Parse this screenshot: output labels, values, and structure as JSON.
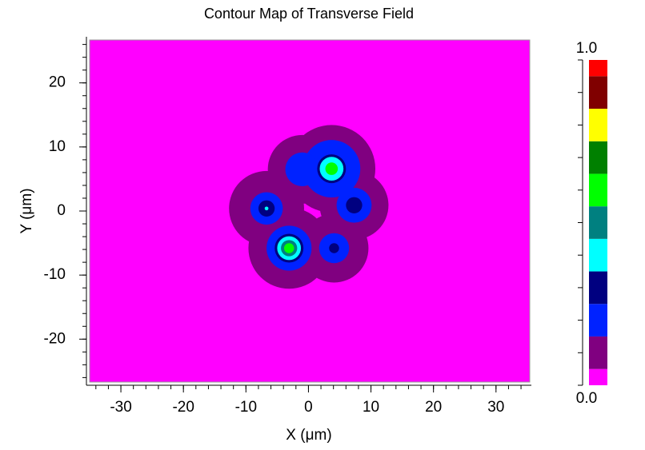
{
  "chart_data": {
    "type": "contour",
    "title": "Contour Map of Transverse Field",
    "xlabel": "X (μm)",
    "ylabel": "Y (μm)",
    "xlim": [
      -35,
      35.4
    ],
    "ylim": [
      -26.7,
      26.7
    ],
    "xticks": [
      -30,
      -20,
      -10,
      0,
      10,
      20,
      30
    ],
    "yticks": [
      -20,
      -10,
      0,
      10,
      20
    ],
    "minor_step": 2,
    "background_color": "#ff00ff",
    "colorbar": {
      "boundaries": [
        0,
        0.05,
        0.15,
        0.25,
        0.35,
        0.45,
        0.55,
        0.65,
        0.75,
        0.85,
        0.95,
        1
      ],
      "colors": [
        "#ff00ff",
        "#800080",
        "#0022ff",
        "#000080",
        "#00ffff",
        "#008080",
        "#00ff00",
        "#008000",
        "#ffff00",
        "#800000",
        "#ff0000"
      ],
      "ticks": [
        0,
        0.1,
        0.2,
        0.3,
        0.4,
        0.5,
        0.6,
        0.7,
        0.8,
        0.9,
        1
      ],
      "tick_labels": [
        {
          "value": 0,
          "label": "0.0"
        },
        {
          "value": 1,
          "label": "1.0"
        }
      ]
    },
    "contours": [
      {
        "level": 0.1,
        "circles": [
          {
            "x": 3.7,
            "y": 6.6,
            "r": 7.0
          },
          {
            "x": -1.0,
            "y": 6.5,
            "r": 5.5
          },
          {
            "x": 7.3,
            "y": 0.9,
            "r": 5.5
          },
          {
            "x": -6.7,
            "y": 0.4,
            "r": 6.0
          },
          {
            "x": -3.1,
            "y": -5.8,
            "r": 6.5
          },
          {
            "x": 4.1,
            "y": -5.8,
            "r": 5.5
          }
        ]
      },
      {
        "level": 0.2,
        "circles": [
          {
            "x": 3.7,
            "y": 6.6,
            "r": 4.6
          },
          {
            "x": -1.0,
            "y": 6.5,
            "r": 2.7
          },
          {
            "x": 7.3,
            "y": 0.9,
            "r": 2.8
          },
          {
            "x": -6.7,
            "y": 0.4,
            "r": 2.6
          },
          {
            "x": -3.1,
            "y": -5.8,
            "r": 3.6
          },
          {
            "x": 4.1,
            "y": -5.8,
            "r": 2.4
          }
        ]
      },
      {
        "level": 0.3,
        "circles": [
          {
            "x": 3.7,
            "y": 6.6,
            "r": 2.3
          },
          {
            "x": 7.3,
            "y": 0.9,
            "r": 1.3
          },
          {
            "x": -6.7,
            "y": 0.4,
            "r": 1.3
          },
          {
            "x": -3.1,
            "y": -5.8,
            "r": 2.3
          },
          {
            "x": 4.1,
            "y": -5.8,
            "r": 0.8
          }
        ]
      },
      {
        "level": 0.4,
        "circles": [
          {
            "x": 3.7,
            "y": 6.6,
            "r": 1.9
          },
          {
            "x": -6.7,
            "y": 0.4,
            "r": 0.3
          },
          {
            "x": -3.1,
            "y": -5.8,
            "r": 1.9
          }
        ]
      },
      {
        "level": 0.5,
        "circles": [
          {
            "x": -3.1,
            "y": -5.8,
            "r": 1.3
          }
        ]
      },
      {
        "level": 0.6,
        "circles": [
          {
            "x": 3.7,
            "y": 6.6,
            "r": 1.0
          },
          {
            "x": -3.1,
            "y": -5.8,
            "r": 0.8
          }
        ]
      }
    ]
  }
}
